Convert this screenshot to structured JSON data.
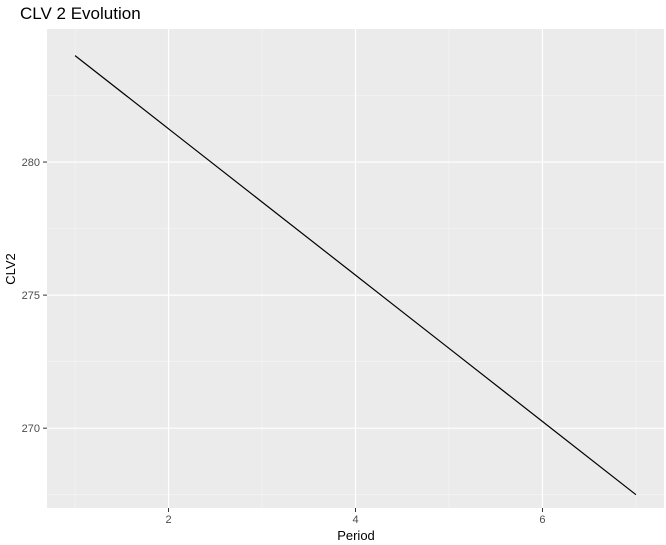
{
  "chart_data": {
    "type": "line",
    "title": "CLV 2 Evolution",
    "xlabel": "Period",
    "ylabel": "CLV2",
    "xlim": [
      0.7,
      7.3
    ],
    "ylim": [
      267.0,
      285.0
    ],
    "x_ticks": [
      2,
      4,
      6
    ],
    "x_tick_labels": [
      "2",
      "4",
      "6"
    ],
    "y_ticks": [
      270,
      275,
      280
    ],
    "y_tick_labels": [
      "270",
      "275",
      "280"
    ],
    "x_minor_ticks": [
      1,
      3,
      5,
      7
    ],
    "y_minor_ticks": [
      267.5,
      272.5,
      277.5,
      282.5
    ],
    "grid": true,
    "legend": "none",
    "series": [
      {
        "x": [
          1,
          2,
          3,
          4,
          5,
          6,
          7
        ],
        "values": [
          284.0,
          281.25,
          278.5,
          275.75,
          273.0,
          270.25,
          267.5
        ]
      }
    ],
    "colors": {
      "panel_background": "#ebebeb",
      "grid_major": "#ffffff",
      "grid_minor": "#f5f5f5",
      "line": "#000000",
      "tick_mark": "#333333",
      "tick_label": "#4d4d4d"
    }
  }
}
